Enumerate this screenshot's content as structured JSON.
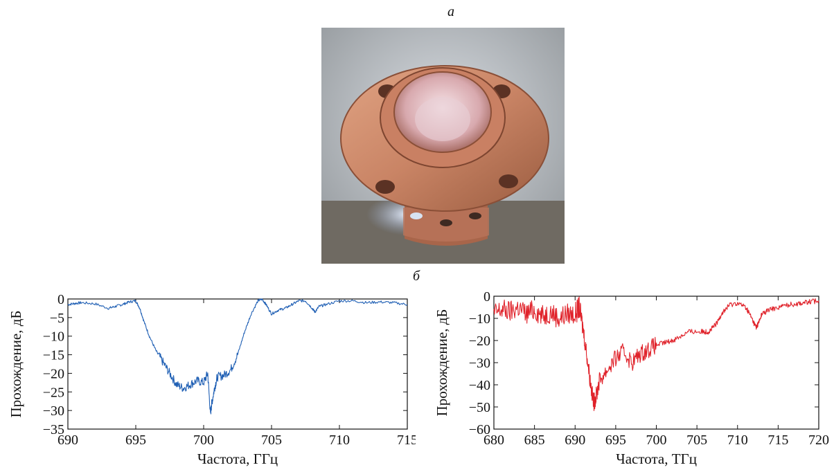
{
  "figure": {
    "label_a": "а",
    "label_b": "б"
  },
  "photo": {
    "description_icon": "copper-flange-photo"
  },
  "chart_data": [
    {
      "type": "line",
      "xlabel": "Частота, ГГц",
      "ylabel": "Прохождение, дБ",
      "xlim": [
        690,
        715
      ],
      "ylim": [
        -35,
        0
      ],
      "xticks": [
        690,
        695,
        700,
        705,
        710,
        715
      ],
      "yticks": [
        0,
        -5,
        -10,
        -15,
        -20,
        -25,
        -30,
        -35
      ],
      "ytick_labels": [
        "0",
        "−5",
        "−10",
        "−15",
        "−20",
        "−25",
        "−30",
        "−35"
      ],
      "color": "#1f5fb4",
      "series": [
        {
          "x": [
            690,
            690.5,
            691,
            692,
            693,
            693.5,
            694,
            694.5,
            695,
            695.3,
            695.6,
            696,
            696.5,
            697,
            697.5,
            698,
            698.5,
            699,
            699.5,
            700,
            700.3,
            700.5,
            700.6,
            700.8,
            701,
            701.5,
            702,
            702.5,
            703,
            703.5,
            704,
            704.3,
            704.6,
            705,
            705.5,
            706,
            706.5,
            707,
            707.5,
            708,
            708.2,
            708.5,
            709,
            710,
            711,
            712,
            713,
            714,
            715
          ],
          "y": [
            -1.5,
            -1.2,
            -1.0,
            -1.3,
            -2.5,
            -2.0,
            -1.5,
            -0.8,
            -0.5,
            -2.5,
            -6,
            -10,
            -14,
            -17,
            -20,
            -23,
            -24,
            -23,
            -22,
            -22.5,
            -20,
            -31,
            -28,
            -24,
            -21,
            -20.5,
            -19,
            -15,
            -9,
            -4,
            -0.5,
            0,
            -1.5,
            -4,
            -3,
            -2.5,
            -1.5,
            -0.5,
            -0.5,
            -2.5,
            -3.5,
            -2,
            -1.5,
            -0.5,
            -0.5,
            -1.0,
            -0.8,
            -1.0,
            -1.5
          ]
        }
      ]
    },
    {
      "type": "line",
      "xlabel": "Частота, ТГц",
      "ylabel": "Прохождение, дБ",
      "xlim": [
        680,
        720
      ],
      "ylim": [
        -60,
        0
      ],
      "xticks": [
        680,
        685,
        690,
        695,
        700,
        705,
        710,
        715,
        720
      ],
      "yticks": [
        0,
        -10,
        -20,
        -30,
        -40,
        -50,
        -60
      ],
      "ytick_labels": [
        "0",
        "−10",
        "−20",
        "−30",
        "−40",
        "−50",
        "−60"
      ],
      "color": "#e0232b",
      "series": [
        {
          "x": [
            680,
            681,
            682,
            683,
            684,
            685,
            686,
            687,
            688,
            689,
            690,
            690.5,
            691,
            691.5,
            692,
            692.3,
            692.6,
            693,
            694,
            695,
            696,
            697,
            698,
            699,
            700,
            701,
            702,
            703,
            704,
            705,
            706,
            706.5,
            707,
            707.5,
            708,
            708.5,
            709,
            710,
            711,
            711.5,
            712,
            712.3,
            712.6,
            713,
            714,
            715,
            716,
            717,
            718,
            719,
            720
          ],
          "y": [
            -8,
            -6,
            -7,
            -5,
            -8,
            -6,
            -9,
            -7,
            -10,
            -8,
            -8,
            -5,
            -15,
            -28,
            -42,
            -48,
            -45,
            -38,
            -33,
            -28,
            -25,
            -30,
            -26,
            -24,
            -22,
            -21,
            -20,
            -18,
            -16,
            -16,
            -16,
            -16,
            -14,
            -12,
            -8,
            -6,
            -4,
            -3,
            -5,
            -8,
            -12,
            -14,
            -12,
            -8,
            -6,
            -5,
            -4,
            -3.5,
            -3,
            -2.5,
            -2
          ]
        }
      ]
    }
  ]
}
